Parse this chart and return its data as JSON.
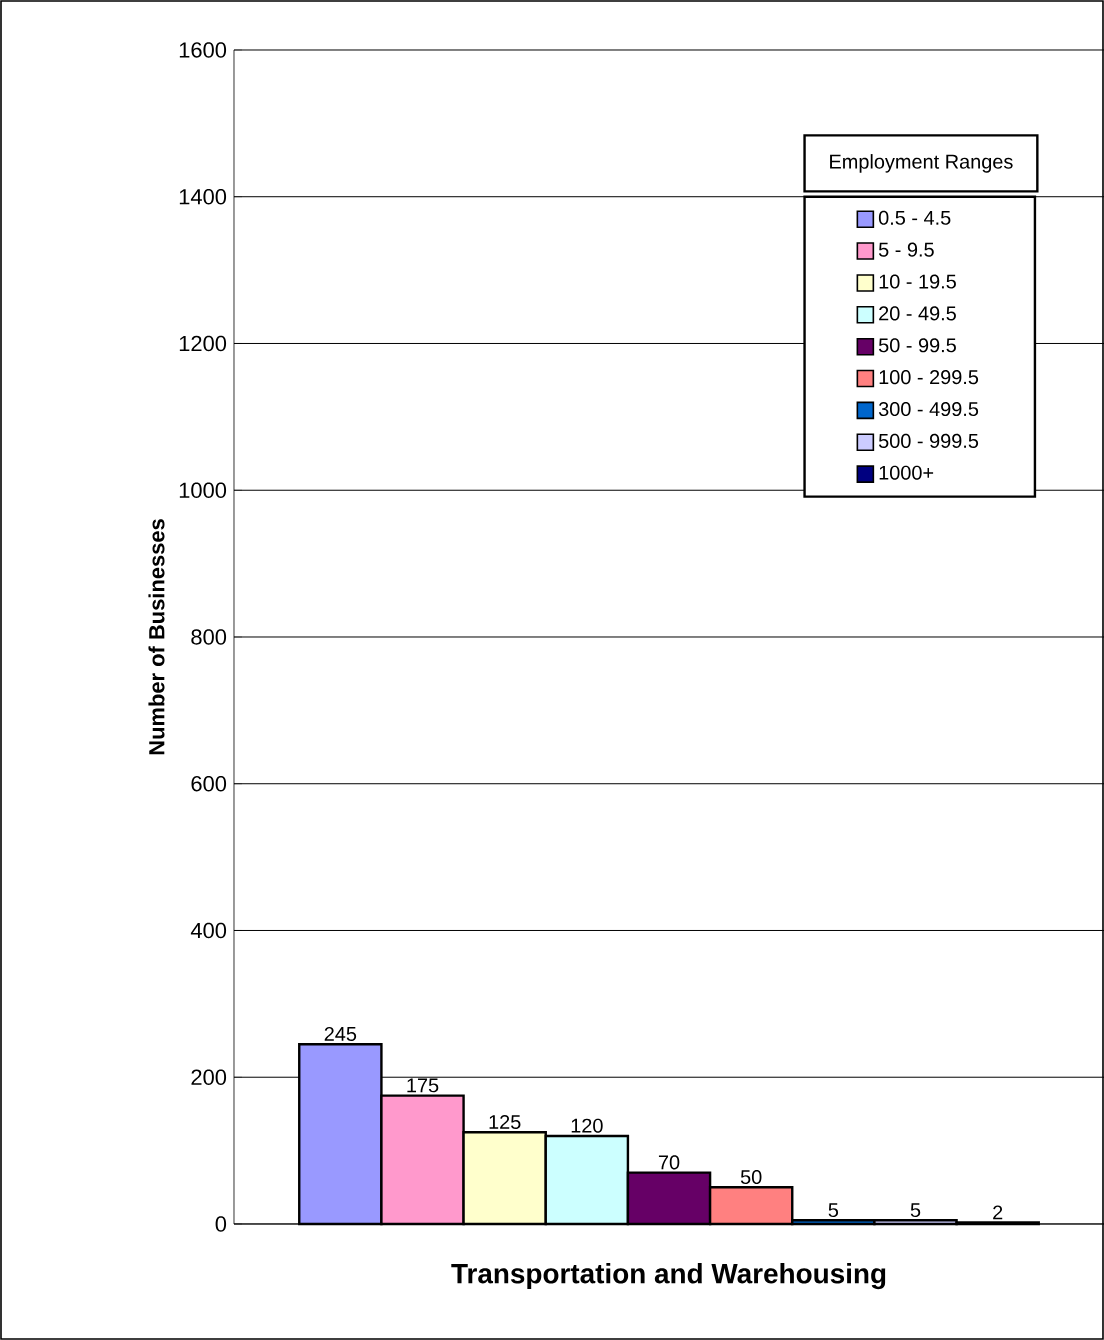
{
  "chart_data": {
    "type": "bar",
    "ylabel": "Number of Businesses",
    "legend_title": "Employment Ranges",
    "categories": [
      "Transportation and Warehousing"
    ],
    "series": [
      {
        "name": "0.5 - 4.5",
        "color": "#9999ff",
        "values": [
          245
        ]
      },
      {
        "name": "5 - 9.5",
        "color": "#ff99cc",
        "values": [
          175
        ]
      },
      {
        "name": "10 - 19.5",
        "color": "#ffffcc",
        "values": [
          125
        ]
      },
      {
        "name": "20 - 49.5",
        "color": "#ccffff",
        "values": [
          120
        ]
      },
      {
        "name": "50 - 99.5",
        "color": "#660066",
        "values": [
          70
        ]
      },
      {
        "name": "100 - 299.5",
        "color": "#ff8080",
        "values": [
          50
        ]
      },
      {
        "name": "300 - 499.5",
        "color": "#0066cc",
        "values": [
          5
        ]
      },
      {
        "name": "500 - 999.5",
        "color": "#ccccff",
        "values": [
          5
        ]
      },
      {
        "name": "1000+",
        "color": "#000080",
        "values": [
          2
        ]
      }
    ],
    "ylim": [
      0,
      1600
    ],
    "yticks": [
      0,
      200,
      400,
      600,
      800,
      1000,
      1200,
      1400,
      1600
    ],
    "grid": "y",
    "legend": "top right",
    "data_labels": true
  }
}
